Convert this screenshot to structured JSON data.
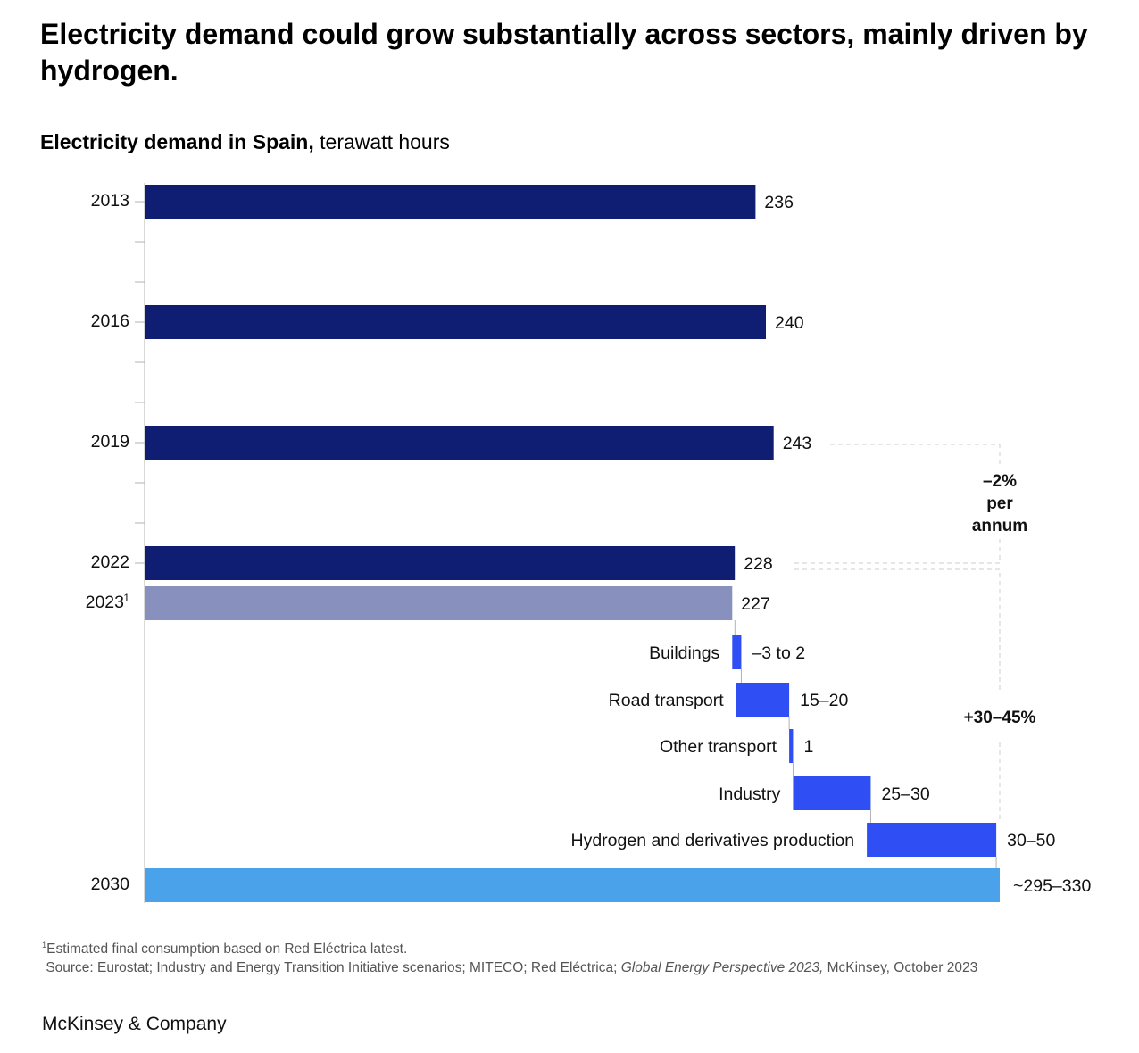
{
  "title": "Electricity demand could grow substantially across sectors, mainly driven by hydrogen.",
  "subtitle_bold": "Electricity demand in Spain,",
  "subtitle_unit": "terawatt hours",
  "colors": {
    "historical": "#0f1e73",
    "estimate": "#8890bd",
    "increment": "#2f4ff5",
    "projection": "#4aa3ea",
    "axis": "#b3b3b3",
    "dashed": "#cccccc"
  },
  "chart_data": {
    "type": "bar",
    "orientation": "horizontal waterfall",
    "xlim": [
      0,
      330
    ],
    "historical": [
      {
        "year": "2013",
        "value": 236,
        "label": "236"
      },
      {
        "year": "2016",
        "value": 240,
        "label": "240"
      },
      {
        "year": "2019",
        "value": 243,
        "label": "243"
      },
      {
        "year": "2022",
        "value": 228,
        "label": "228"
      }
    ],
    "estimate": {
      "year": "2023",
      "marker": "1",
      "value": 227,
      "label": "227"
    },
    "increments": [
      {
        "name": "Buildings",
        "low": -3,
        "high": 2,
        "label": "–3 to 2"
      },
      {
        "name": "Road transport",
        "low": 15,
        "high": 20,
        "label": "15–20"
      },
      {
        "name": "Other transport",
        "low": 1,
        "high": 1,
        "label": "1"
      },
      {
        "name": "Industry",
        "low": 25,
        "high": 30,
        "label": "25–30"
      },
      {
        "name": "Hydrogen and derivatives production",
        "low": 30,
        "high": 50,
        "label": "30–50"
      }
    ],
    "projection": {
      "year": "2030",
      "low": 295,
      "high": 330,
      "label": "~295–330"
    },
    "annotations": {
      "decline_lines": [
        "–2%",
        "per",
        "annum"
      ],
      "growth": "+30–45%"
    }
  },
  "footnote": {
    "marker": "1",
    "line1": "Estimated final consumption based on Red Eléctrica latest.",
    "source_pre": "Source: Eurostat; Industry and Energy Transition Initiative scenarios; MITECO; Red Eléctrica;",
    "source_italic": "Global Energy Perspective 2023,",
    "source_post": "McKinsey, October 2023"
  },
  "brand": "McKinsey & Company"
}
